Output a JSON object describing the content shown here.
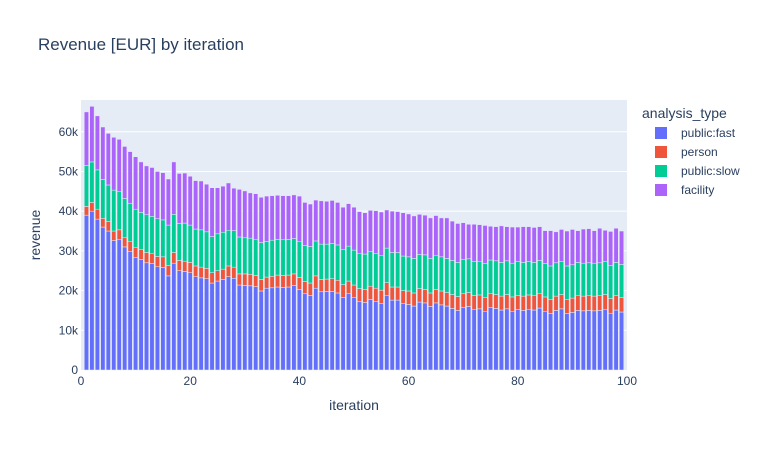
{
  "chart_data": {
    "type": "bar",
    "barmode": "stack",
    "title": "Revenue [EUR] by iteration",
    "xlabel": "iteration",
    "ylabel": "revenue",
    "xlim": [
      0,
      100
    ],
    "ylim": [
      0,
      68000
    ],
    "x_ticks": [
      {
        "value": 0,
        "label": "0"
      },
      {
        "value": 20,
        "label": "20"
      },
      {
        "value": 40,
        "label": "40"
      },
      {
        "value": 60,
        "label": "60"
      },
      {
        "value": 80,
        "label": "80"
      },
      {
        "value": 100,
        "label": "100"
      }
    ],
    "y_ticks": [
      {
        "value": 0,
        "label": "0"
      },
      {
        "value": 10000,
        "label": "10k"
      },
      {
        "value": 20000,
        "label": "20k"
      },
      {
        "value": 30000,
        "label": "30k"
      },
      {
        "value": 40000,
        "label": "40k"
      },
      {
        "value": 50000,
        "label": "50k"
      },
      {
        "value": 60000,
        "label": "60k"
      }
    ],
    "grid": true,
    "legend": {
      "title": "analysis_type",
      "position": "right"
    },
    "x": [
      1,
      2,
      3,
      4,
      5,
      6,
      7,
      8,
      9,
      10,
      11,
      12,
      13,
      14,
      15,
      16,
      17,
      18,
      19,
      20,
      21,
      22,
      23,
      24,
      25,
      26,
      27,
      28,
      29,
      30,
      31,
      32,
      33,
      34,
      35,
      36,
      37,
      38,
      39,
      40,
      41,
      42,
      43,
      44,
      45,
      46,
      47,
      48,
      49,
      50,
      51,
      52,
      53,
      54,
      55,
      56,
      57,
      58,
      59,
      60,
      61,
      62,
      63,
      64,
      65,
      66,
      67,
      68,
      69,
      70,
      71,
      72,
      73,
      74,
      75,
      76,
      77,
      78,
      79,
      80,
      81,
      82,
      83,
      84,
      85,
      86,
      87,
      88,
      89,
      90,
      91,
      92,
      93,
      94,
      95,
      96,
      97,
      98,
      99
    ],
    "series": [
      {
        "name": "public:fast",
        "color": "#636efa",
        "values": [
          39000,
          40000,
          38000,
          36000,
          35000,
          32600,
          32800,
          31000,
          29900,
          28300,
          27800,
          27000,
          26800,
          26000,
          25800,
          23700,
          26900,
          25000,
          24800,
          24500,
          23500,
          23200,
          23000,
          21900,
          22400,
          22800,
          23500,
          23100,
          21400,
          21300,
          21200,
          21000,
          19900,
          20600,
          20700,
          20900,
          20800,
          20900,
          21300,
          20300,
          19200,
          18800,
          20600,
          19700,
          19800,
          19800,
          19400,
          18300,
          19200,
          18200,
          17300,
          17000,
          17800,
          17300,
          16800,
          18700,
          17600,
          17600,
          16700,
          16500,
          16100,
          17100,
          16900,
          16000,
          16900,
          16400,
          16100,
          15500,
          15000,
          15700,
          16000,
          15300,
          15400,
          14800,
          15700,
          15500,
          15100,
          15400,
          14800,
          15200,
          15000,
          15300,
          15100,
          15600,
          14800,
          14200,
          15000,
          15400,
          14200,
          14500,
          15000,
          14900,
          15000,
          14900,
          15000,
          15300,
          14300,
          15100,
          14600
        ],
        "values_comment": "derived"
      },
      {
        "name": "person",
        "color": "#ef553b",
        "values": [
          2200,
          2200,
          2500,
          2200,
          2400,
          2400,
          2500,
          2300,
          2400,
          2500,
          2500,
          2600,
          2600,
          2600,
          2700,
          2600,
          2700,
          2600,
          2600,
          2600,
          2700,
          2700,
          2600,
          2600,
          2600,
          2600,
          2700,
          2800,
          2800,
          2900,
          2900,
          2800,
          2900,
          2800,
          2900,
          3000,
          3000,
          3000,
          2900,
          3000,
          3100,
          3100,
          3100,
          3100,
          3100,
          3200,
          3200,
          3200,
          3200,
          3200,
          3200,
          3300,
          3300,
          3300,
          3300,
          3300,
          3300,
          3300,
          3300,
          3400,
          3300,
          3400,
          3400,
          3400,
          3400,
          3500,
          3400,
          3500,
          3500,
          3500,
          3500,
          3500,
          3500,
          3500,
          3500,
          3500,
          3500,
          3600,
          3600,
          3600,
          3600,
          3600,
          3600,
          3600,
          3600,
          3600,
          3600,
          3600,
          3600,
          3600,
          3700,
          3700,
          3700,
          3700,
          3700,
          3700,
          3700,
          3700,
          3700
        ]
      },
      {
        "name": "public:slow",
        "color": "#00cc96",
        "values": [
          10300,
          10200,
          9900,
          9800,
          9200,
          10300,
          9600,
          9900,
          9600,
          9700,
          9400,
          9500,
          9300,
          9500,
          9300,
          10200,
          9600,
          9300,
          9600,
          9400,
          9300,
          9400,
          9200,
          9100,
          9300,
          9300,
          9000,
          9200,
          9300,
          9100,
          9100,
          9000,
          9300,
          9000,
          9100,
          9000,
          9000,
          9000,
          8900,
          9000,
          9100,
          9200,
          8800,
          8900,
          8800,
          8900,
          8900,
          8900,
          8800,
          8800,
          8900,
          8900,
          8800,
          8700,
          8800,
          8700,
          8700,
          8700,
          8700,
          8600,
          8700,
          8600,
          8700,
          8700,
          8600,
          8600,
          8600,
          8600,
          8600,
          8600,
          8500,
          8500,
          8500,
          8500,
          8500,
          8500,
          8500,
          8500,
          8500,
          8500,
          8500,
          8400,
          8400,
          8400,
          8400,
          8400,
          8400,
          8300,
          8400,
          8400,
          8400,
          8300,
          8300,
          8300,
          8300,
          8300,
          8300,
          8300,
          8300
        ]
      },
      {
        "name": "facility",
        "color": "#ab63fa",
        "values": [
          13500,
          14000,
          13600,
          13200,
          13000,
          13300,
          13200,
          13100,
          13100,
          13200,
          12700,
          12300,
          12300,
          11900,
          11900,
          11600,
          13200,
          12600,
          12600,
          12300,
          12200,
          12300,
          12000,
          12300,
          11600,
          11600,
          11900,
          10700,
          12000,
          11800,
          11400,
          11600,
          11400,
          11400,
          11200,
          11100,
          11100,
          11000,
          11000,
          11500,
          10800,
          10700,
          10300,
          10900,
          10800,
          10800,
          10700,
          10600,
          10700,
          10800,
          10500,
          10400,
          10300,
          10800,
          10900,
          9600,
          10400,
          10300,
          10900,
          10800,
          10700,
          10100,
          10000,
          10200,
          10000,
          9800,
          10200,
          9900,
          9800,
          9300,
          8700,
          9400,
          9200,
          9600,
          8500,
          8600,
          9200,
          8600,
          9100,
          8700,
          9000,
          8800,
          8800,
          8500,
          8300,
          8900,
          7800,
          8100,
          8800,
          8900,
          8000,
          8600,
          8600,
          8200,
          8700,
          7900,
          8600,
          8600,
          8400
        ]
      }
    ]
  }
}
